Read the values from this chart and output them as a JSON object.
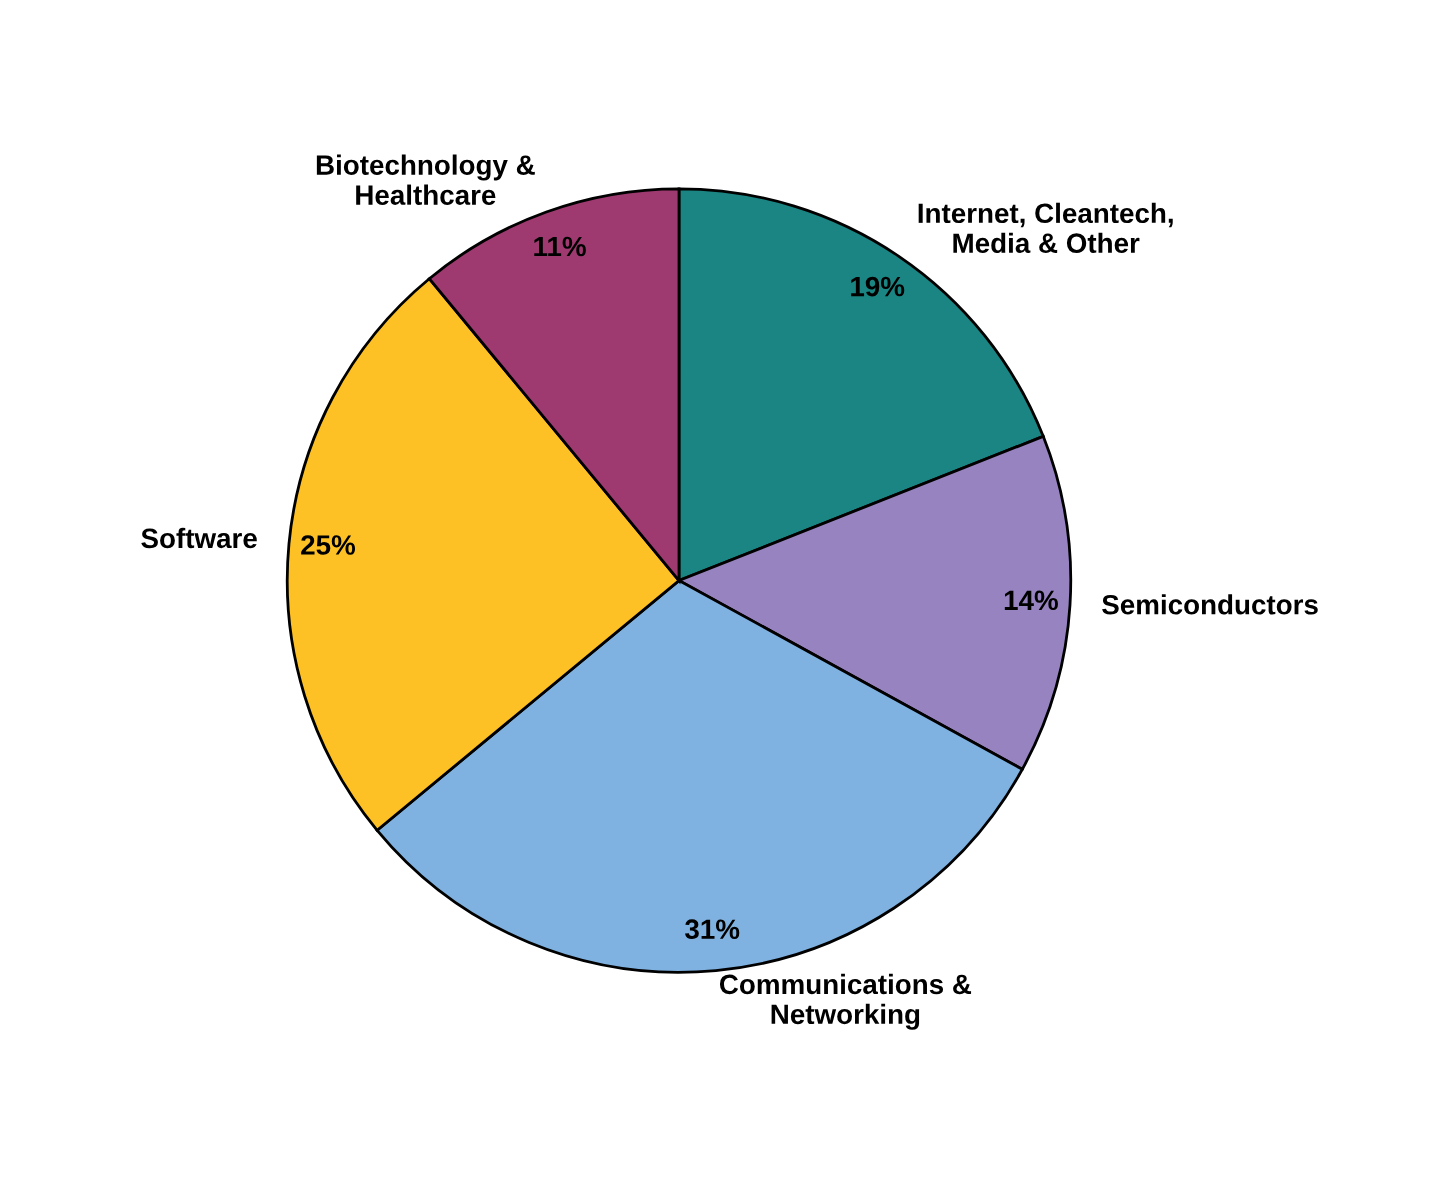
{
  "chart_data": {
    "type": "pie",
    "categories": [
      "Internet, Cleantech,\nMedia & Other",
      "Semiconductors",
      "Communications &\nNetworking",
      "Software",
      "Biotechnology &\nHealthcare"
    ],
    "values": [
      19,
      14,
      31,
      25,
      11
    ],
    "colors": [
      "#1a8582",
      "#9683bf",
      "#7fb2e0",
      "#fdc125",
      "#9e3a70"
    ],
    "value_labels": [
      "19%",
      "14%",
      "31%",
      "25%",
      "11%"
    ],
    "legend": false
  }
}
